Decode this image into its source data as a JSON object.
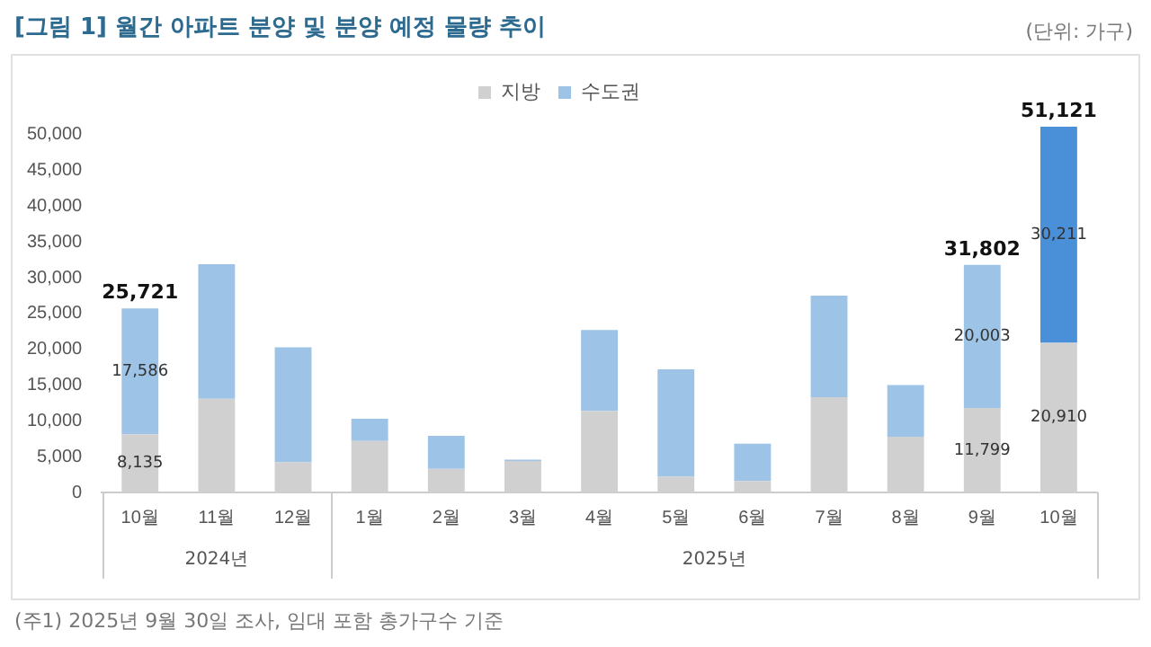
{
  "chart_data": {
    "type": "bar",
    "stacked": true,
    "title": "[그림 1] 월간 아파트 분양 및 분양 예정 물량 추이",
    "categories": [
      "10월",
      "11월",
      "12월",
      "1월",
      "2월",
      "3월",
      "4월",
      "5월",
      "6월",
      "7월",
      "8월",
      "9월",
      "10월"
    ],
    "series": [
      {
        "name": "지방",
        "color": "#d0d0d0",
        "values": [
          8135,
          13100,
          4200,
          7200,
          3300,
          4400,
          11400,
          2200,
          1600,
          13300,
          7800,
          11799,
          20910
        ],
        "value_labels": [
          "8,135",
          null,
          null,
          null,
          null,
          null,
          null,
          null,
          null,
          null,
          null,
          "11,799",
          "20,910"
        ]
      },
      {
        "name": "수도권",
        "color": "#9dc3e6",
        "colors": [
          "#9dc3e6",
          "#9dc3e6",
          "#9dc3e6",
          "#9dc3e6",
          "#9dc3e6",
          "#9dc3e6",
          "#9dc3e6",
          "#9dc3e6",
          "#9dc3e6",
          "#9dc3e6",
          "#9dc3e6",
          "#9dc3e6",
          "#4a90d9"
        ],
        "values": [
          17586,
          18800,
          16100,
          3100,
          4600,
          200,
          11300,
          15000,
          5200,
          14200,
          7200,
          20003,
          30211
        ],
        "value_labels": [
          "17,586",
          null,
          null,
          null,
          null,
          null,
          null,
          null,
          null,
          null,
          null,
          "20,003",
          "30,211"
        ]
      }
    ],
    "totals": [
      "25,721",
      null,
      null,
      null,
      null,
      null,
      null,
      null,
      null,
      null,
      null,
      "31,802",
      "51,121"
    ],
    "ylim": [
      0,
      52000
    ],
    "yticks": [
      {
        "value": 0,
        "label": "0"
      },
      {
        "value": 5000,
        "label": "5,000"
      },
      {
        "value": 10000,
        "label": "10,000"
      },
      {
        "value": 15000,
        "label": "15,000"
      },
      {
        "value": 20000,
        "label": "20,000"
      },
      {
        "value": 25000,
        "label": "25,000"
      },
      {
        "value": 30000,
        "label": "30,000"
      },
      {
        "value": 35000,
        "label": "35,000"
      },
      {
        "value": 40000,
        "label": "40,000"
      },
      {
        "value": 45000,
        "label": "45,000"
      },
      {
        "value": 50000,
        "label": "50,000"
      }
    ],
    "grid": false,
    "legend": "top",
    "annotations": [
      "(단위: 가구)",
      "2024년",
      "2025년",
      "(주1) 2025년 9월 30일 조사, 임대 포함 총가구수 기준"
    ]
  }
}
